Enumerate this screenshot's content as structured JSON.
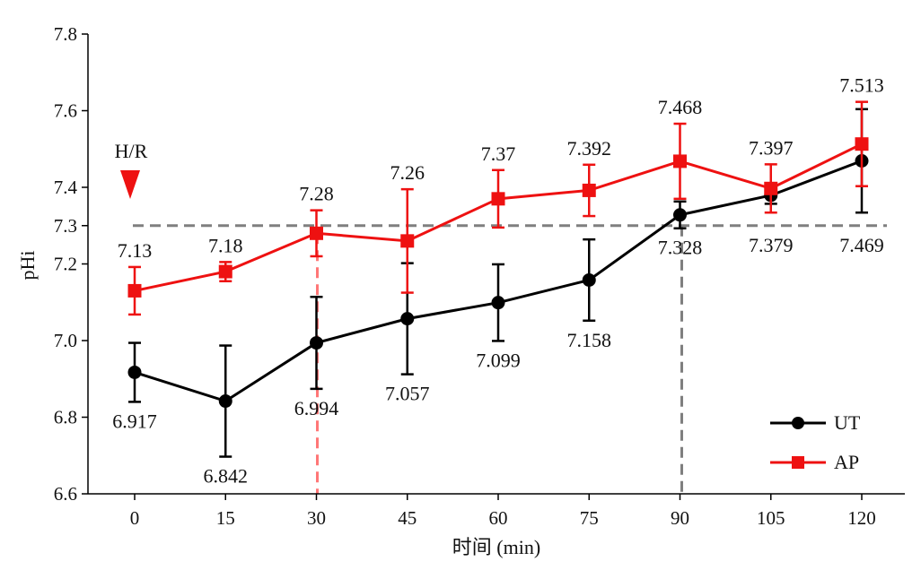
{
  "chart_data": {
    "type": "line",
    "xlabel": "时间 (min)",
    "ylabel": "pHi",
    "ylim": [
      6.6,
      7.8
    ],
    "y_ticks": [
      {
        "value": 6.6,
        "label": "6.6"
      },
      {
        "value": 6.8,
        "label": "6.8"
      },
      {
        "value": 7.0,
        "label": "7.0"
      },
      {
        "value": 7.2,
        "label": "7.2"
      },
      {
        "value": 7.3,
        "label": "7.3"
      },
      {
        "value": 7.4,
        "label": "7.4"
      },
      {
        "value": 7.6,
        "label": "7.6"
      },
      {
        "value": 7.8,
        "label": "7.8"
      }
    ],
    "categories": [
      "0",
      "15",
      "30",
      "45",
      "60",
      "75",
      "90",
      "105",
      "120"
    ],
    "series": [
      {
        "name": "UT",
        "color": "#000000",
        "marker": "circle",
        "values": [
          6.917,
          6.842,
          6.994,
          7.057,
          7.099,
          7.158,
          7.328,
          7.379,
          7.469
        ],
        "labels": [
          "6.917",
          "6.842",
          "6.994",
          "7.057",
          "7.099",
          "7.158",
          "7.328",
          "7.379",
          "7.469"
        ],
        "error": [
          0.077,
          0.145,
          0.12,
          0.145,
          0.1,
          0.106,
          0.035,
          0.022,
          0.135
        ],
        "label_position": "below"
      },
      {
        "name": "AP",
        "color": "#ee1111",
        "marker": "square",
        "values": [
          7.13,
          7.18,
          7.28,
          7.26,
          7.37,
          7.392,
          7.468,
          7.397,
          7.513
        ],
        "labels": [
          "7.13",
          "7.18",
          "7.28",
          "7.26",
          "7.37",
          "7.392",
          "7.468",
          "7.397",
          "7.513"
        ],
        "error": [
          0.062,
          0.025,
          0.06,
          0.135,
          0.075,
          0.067,
          0.098,
          0.063,
          0.11
        ],
        "label_position": "above"
      }
    ],
    "reference_lines": {
      "horizontal": {
        "y": 7.3,
        "color": "#7f7f7f",
        "style": "dashed"
      },
      "vertical": [
        {
          "x": "30",
          "color": "#ff7777",
          "style": "dashed"
        },
        {
          "x": "90",
          "color": "#7f7f7f",
          "style": "dashed"
        }
      ]
    },
    "annotation": {
      "text": "H/R",
      "x": "0",
      "color": "#ee1111"
    },
    "legend": {
      "placement": "bottom-right"
    }
  }
}
